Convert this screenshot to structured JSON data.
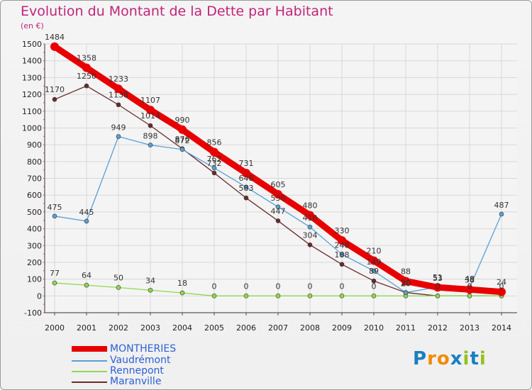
{
  "title": "Evolution du Montant de la Dette par Habitant",
  "unit": "(en €)",
  "logo": [
    "P",
    "r",
    "o",
    "x",
    "i",
    "t",
    "i"
  ],
  "logo_colors": [
    "#1a7fc0",
    "#f08c00",
    "#f08c00",
    "#1a7fc0",
    "#94c11f",
    "#1a7fc0",
    "#94c11f"
  ],
  "chart_data": {
    "type": "line",
    "title": "Evolution du Montant de la Dette par Habitant",
    "ylabel": "(en €)",
    "xlabel": "",
    "ylim": [
      -100,
      1500
    ],
    "yticks": [
      -100,
      0,
      100,
      200,
      300,
      400,
      500,
      600,
      700,
      800,
      900,
      1000,
      1100,
      1200,
      1300,
      1400,
      1500
    ],
    "x": [
      "2000",
      "2001",
      "2002",
      "2003",
      "2004",
      "2005",
      "2006",
      "2007",
      "2008",
      "2009",
      "2010",
      "2011",
      "2012",
      "2013",
      "2014"
    ],
    "legend_position": "bottom-left",
    "grid": true,
    "series": [
      {
        "name": "MONTHERIES",
        "color": "#e80000",
        "values": [
          1484,
          1358,
          1233,
          1107,
          990,
          856,
          731,
          605,
          480,
          330,
          210,
          88,
          51,
          38,
          24
        ]
      },
      {
        "name": "Vaudrémont",
        "color": "#5a9fd4",
        "values": [
          475,
          445,
          949,
          898,
          872,
          762,
          648,
          530,
          410,
          248,
          149,
          20,
          53,
          48,
          487
        ]
      },
      {
        "name": "Rennepont",
        "color": "#90d850",
        "values": [
          77,
          64,
          50,
          34,
          18,
          0,
          0,
          0,
          0,
          0,
          0,
          0,
          0,
          0,
          0
        ]
      },
      {
        "name": "Maranville",
        "color": "#6b2a2a",
        "values": [
          1170,
          1250,
          1138,
          1014,
          876,
          732,
          583,
          447,
          304,
          188,
          89,
          20,
          0,
          0,
          0
        ]
      }
    ],
    "labels": [
      {
        "series": 0,
        "labels": [
          "1484",
          "1358",
          "1233",
          "1107",
          "990",
          "856",
          "731",
          "605",
          "480",
          "330",
          "210",
          "88",
          "51",
          "38",
          "24"
        ]
      },
      {
        "series": 1,
        "labels": [
          "475",
          "445",
          "949",
          "898",
          "872",
          "762",
          "648",
          "530",
          "410",
          "248",
          "149",
          "20",
          "53",
          "48",
          "487"
        ]
      },
      {
        "series": 2,
        "labels": [
          "77",
          "64",
          "50",
          "34",
          "18",
          "0",
          "0",
          "0",
          "0",
          "0",
          "0",
          "",
          "",
          "",
          ""
        ]
      },
      {
        "series": 3,
        "labels": [
          "1170",
          "1250",
          "1138",
          "1014",
          "876",
          "732",
          "583",
          "447",
          "304",
          "188",
          "89",
          "20",
          "0",
          "0",
          "0"
        ]
      }
    ]
  }
}
